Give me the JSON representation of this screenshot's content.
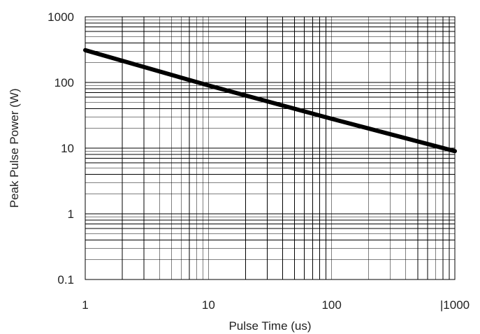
{
  "chart_data": {
    "type": "line",
    "title": "",
    "xlabel": "Pulse Time (us)",
    "ylabel": "Peak Pulse Power (W)",
    "xscale": "log",
    "yscale": "log",
    "xlim": [
      1,
      1000
    ],
    "ylim": [
      0.1,
      1000
    ],
    "grid": true,
    "legend": "none",
    "x_ticks": [
      1,
      10,
      100,
      1000
    ],
    "x_tick_labels": [
      "1",
      "10",
      "100",
      "|1000"
    ],
    "y_ticks": [
      0.1,
      1,
      10,
      100,
      1000
    ],
    "y_tick_labels": [
      "0.1",
      "1",
      "10",
      "100",
      "1000"
    ],
    "series": [
      {
        "x": [
          1,
          10,
          100,
          1000
        ],
        "values": [
          310,
          90,
          28,
          9
        ],
        "color": "#000000"
      }
    ],
    "colors": {
      "grid": "#000000",
      "line": "#000000",
      "text": "#222222"
    }
  }
}
